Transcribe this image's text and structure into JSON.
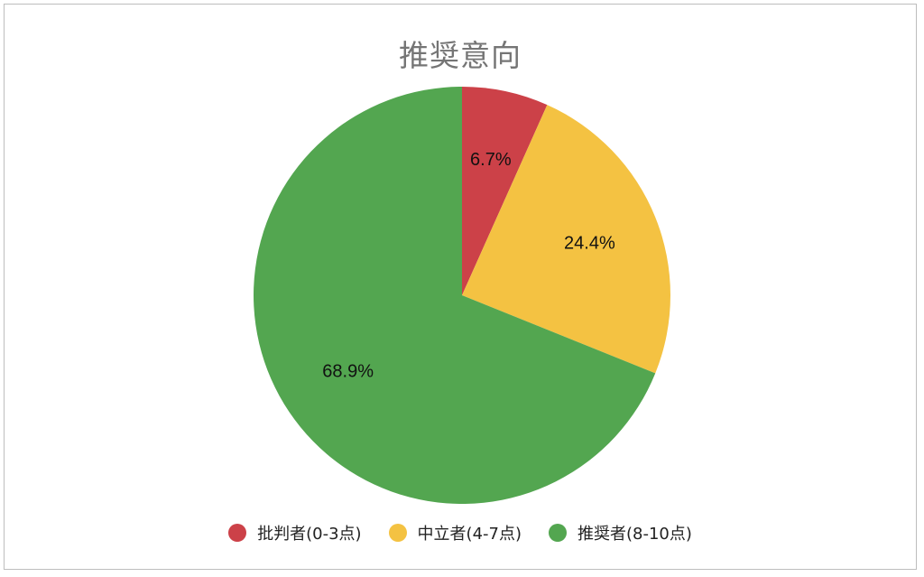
{
  "chart_data": {
    "type": "pie",
    "title": "推奨意向",
    "slices": [
      {
        "name": "批判者(0-3点)",
        "value": 6.7,
        "label": "6.7%",
        "color": "#cc4148"
      },
      {
        "name": "中立者(4-7点)",
        "value": 24.4,
        "label": "24.4%",
        "color": "#f4c242"
      },
      {
        "name": "推奨者(8-10点)",
        "value": 68.9,
        "label": "68.9%",
        "color": "#53a650"
      }
    ],
    "start_angle": "top",
    "direction": "clockwise",
    "legend_position": "bottom"
  }
}
